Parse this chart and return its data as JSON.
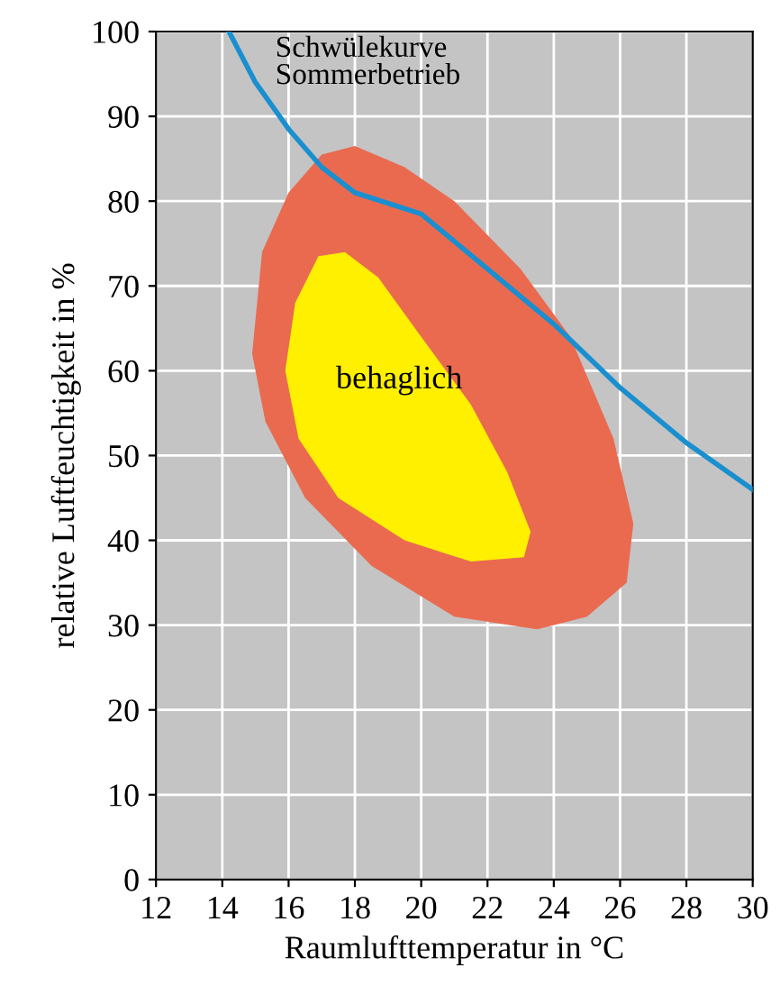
{
  "chart_data": {
    "type": "line",
    "xlabel": "Raumlufttemperatur in °C",
    "ylabel": "relative Luftfeuchtigkeit in %",
    "xlim": [
      12,
      30
    ],
    "xticks": [
      12,
      14,
      16,
      18,
      20,
      22,
      24,
      26,
      28,
      30
    ],
    "ylim": [
      0,
      100
    ],
    "yticks": [
      0,
      10,
      20,
      30,
      40,
      50,
      60,
      70,
      80,
      90,
      100
    ],
    "grid": true,
    "legend": false,
    "series": [
      {
        "type": "area",
        "color": "#ea6a50",
        "x": [
          15.2,
          16,
          17,
          18,
          19.5,
          21,
          23,
          24.5,
          25.8,
          26.4,
          26.2,
          25,
          23.5,
          21,
          18.5,
          16.5,
          15.3,
          14.9
        ],
        "values": [
          74,
          81,
          85.5,
          86.5,
          84,
          80,
          72,
          64,
          52,
          42,
          35,
          31,
          29.5,
          31,
          37,
          45,
          54,
          62
        ]
      },
      {
        "type": "area",
        "name": "behaglich",
        "color": "#fff000",
        "x": [
          16.9,
          17.7,
          18.7,
          20,
          21.5,
          22.6,
          23.3,
          23.1,
          21.5,
          19.5,
          17.5,
          16.3,
          15.9,
          16.2
        ],
        "values": [
          73.5,
          74,
          71,
          64,
          56,
          48,
          41,
          38,
          37.5,
          40,
          45,
          52,
          60,
          68
        ]
      },
      {
        "name": "Schwülekurve Sommerbetrieb",
        "color": "#1a8fd0",
        "x": [
          14.2,
          15,
          16,
          17,
          18,
          20,
          22,
          24,
          26,
          28,
          30
        ],
        "values": [
          100,
          94,
          88.5,
          84,
          81,
          78.5,
          72,
          65.5,
          58,
          51.5,
          46
        ]
      }
    ]
  }
}
